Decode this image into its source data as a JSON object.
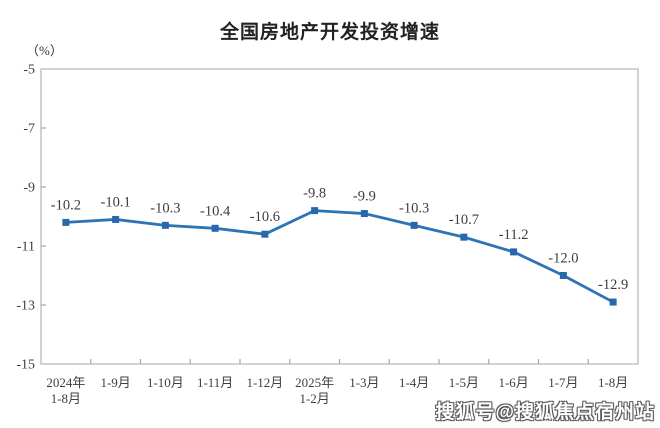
{
  "chart_data": {
    "type": "line",
    "title": "全国房地产开发投资增速",
    "unit_label": "（%）",
    "categories": [
      "2024年\n1-8月",
      "1-9月",
      "1-10月",
      "1-11月",
      "1-12月",
      "2025年\n1-2月",
      "1-3月",
      "1-4月",
      "1-5月",
      "1-6月",
      "1-7月",
      "1-8月"
    ],
    "values": [
      -10.2,
      -10.1,
      -10.3,
      -10.4,
      -10.6,
      -9.8,
      -9.9,
      -10.3,
      -10.7,
      -11.2,
      -12.0,
      -12.9
    ],
    "data_labels": [
      "-10.2",
      "-10.1",
      "-10.3",
      "-10.4",
      "-10.6",
      "-9.8",
      "-9.9",
      "-10.3",
      "-10.7",
      "-11.2",
      "-12.0",
      "-12.9"
    ],
    "xlabel": "",
    "ylabel": "（%）",
    "ylim": [
      -15,
      -5
    ],
    "yticks": [
      -5,
      -7,
      -9,
      -11,
      -13,
      -15
    ],
    "grid": false,
    "legend_position": "none",
    "line_color": "#2E74B5",
    "marker_color": "#2767AD",
    "marker_shape": "square",
    "axis_frame_color": "#bfbfbf",
    "tick_color": "#a6a6a6",
    "axis_text_color": "#404040",
    "data_label_color": "#3d3d3d"
  },
  "watermark": {
    "text": "搜狐号@搜狐焦点宿州站"
  }
}
